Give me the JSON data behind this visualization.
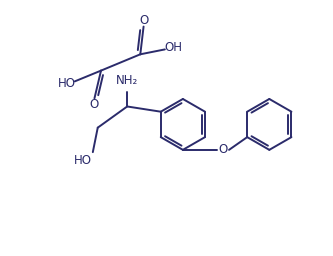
{
  "background_color": "#ffffff",
  "line_color": "#2b2b6b",
  "line_width": 1.4,
  "font_size": 8.5,
  "fig_width": 3.33,
  "fig_height": 2.56,
  "dpi": 100,
  "xlim": [
    0,
    10
  ],
  "ylim": [
    0,
    7.68
  ]
}
